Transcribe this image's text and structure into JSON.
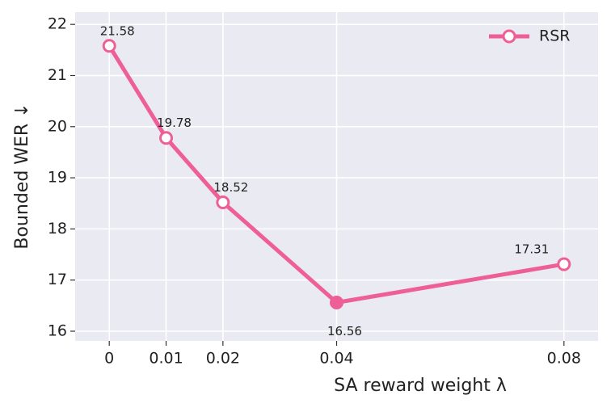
{
  "chart_data": {
    "type": "line",
    "xlabel": "SA reward weight λ",
    "ylabel": "Bounded WER ↓",
    "x": [
      0,
      0.01,
      0.02,
      0.04,
      0.08
    ],
    "series": [
      {
        "name": "RSR",
        "color": "#ee5f96",
        "values": [
          21.58,
          19.78,
          18.52,
          16.56,
          17.31
        ],
        "marker_fills": [
          "#ffffff",
          "#ffffff",
          "#ffffff",
          "#ee5f96",
          "#ffffff"
        ]
      }
    ],
    "xlim": [
      -0.006,
      0.086
    ],
    "xticks": [
      0,
      0.01,
      0.02,
      0.04,
      0.08
    ],
    "ylim": [
      15.81,
      22.24
    ],
    "yticks": [
      16,
      17,
      18,
      19,
      20,
      21,
      22
    ],
    "grid": true,
    "legend": "upper right",
    "background": "#eaeaf2"
  }
}
